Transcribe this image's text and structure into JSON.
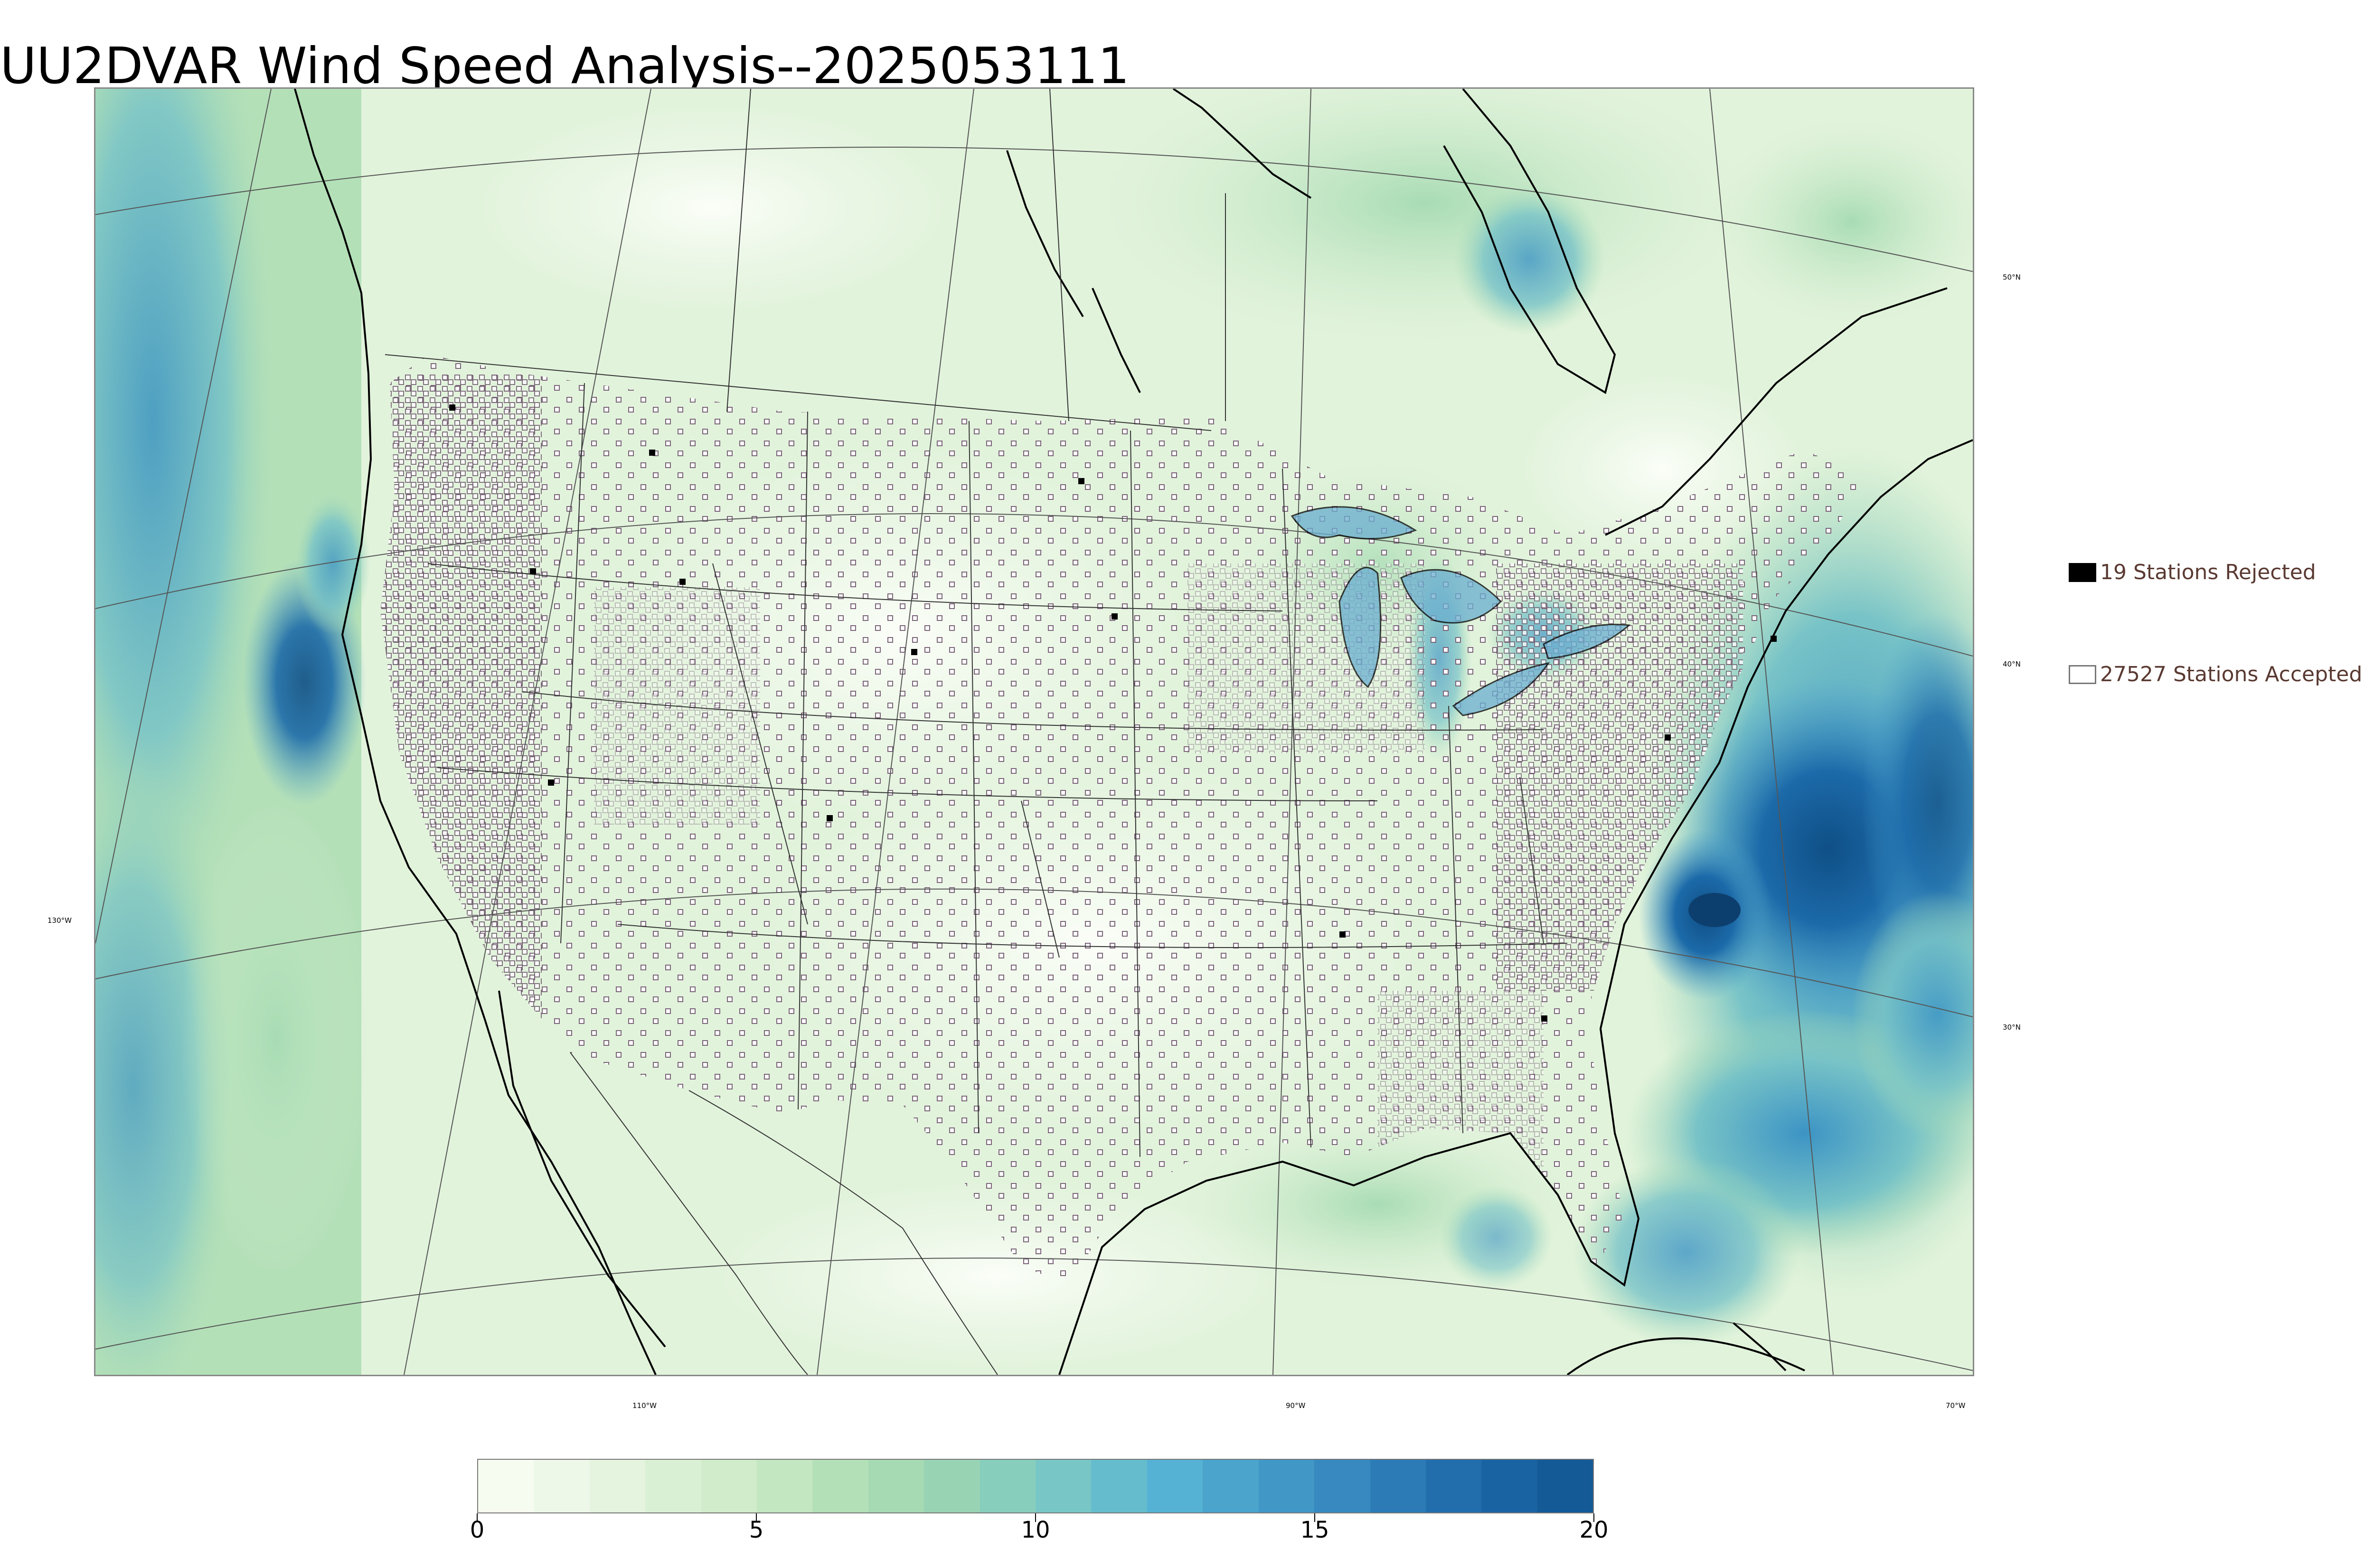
{
  "title": "UU2DVAR Wind Speed Analysis--2025053111",
  "map": {
    "projection": "lambert-conformal",
    "region": "CONUS",
    "field": "wind speed",
    "longitude_labels": [
      "110°W",
      "90°W",
      "70°W",
      "130°W"
    ],
    "latitude_labels": [
      "50°N",
      "40°N",
      "30°N"
    ]
  },
  "legend": {
    "rejected": {
      "label": "19 Stations Rejected",
      "count": 19,
      "marker": "filled-black-square"
    },
    "accepted": {
      "label": "27527 Stations Accepted",
      "count": 27527,
      "marker": "hollow-square"
    }
  },
  "colorbar": {
    "min": 0,
    "max": 20,
    "tick_labels": [
      "0",
      "5",
      "10",
      "15",
      "20"
    ],
    "colors": [
      "#f7fcf0",
      "#eef8e9",
      "#e4f4df",
      "#daf0d4",
      "#d0ecca",
      "#c3e7c0",
      "#b4e0b8",
      "#a6dab3",
      "#98d4b4",
      "#88cebd",
      "#78c7c6",
      "#65bccc",
      "#55b2d4",
      "#4ba4cc",
      "#4197c6",
      "#3789bf",
      "#2c7bb6",
      "#226eac",
      "#1a63a2",
      "#135a97"
    ]
  },
  "colors": {
    "coast": "#000000",
    "border": "#333333",
    "accepted_marker_stroke": "#7a6478",
    "rejected_marker": "#000000",
    "ocean_high_wind": "#1f68a8"
  }
}
